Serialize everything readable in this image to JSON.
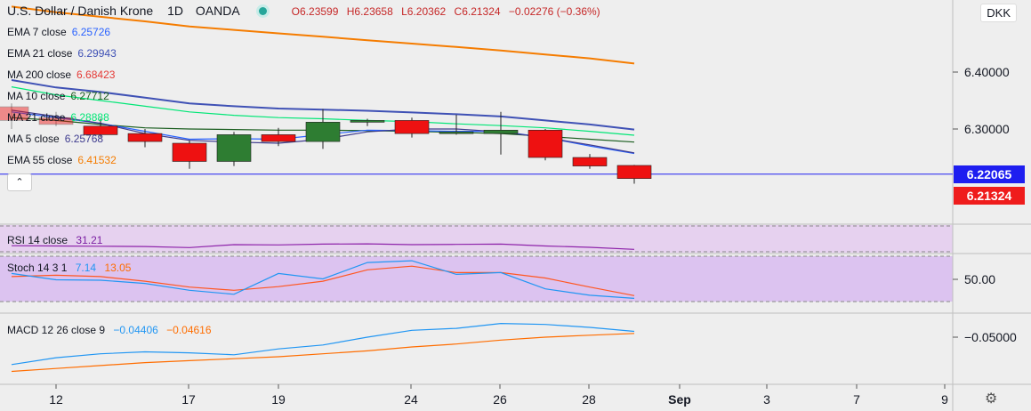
{
  "header": {
    "symbol": "U.S. Dollar / Danish Krone",
    "interval": "1D",
    "source": "OANDA",
    "open": "O6.23599",
    "high": "H6.23658",
    "low": "L6.20362",
    "close": "C6.21324",
    "change": "−0.02276 (−0.36%)"
  },
  "currency_badge": "DKK",
  "indicators": [
    {
      "label": "EMA 7 close",
      "value": "6.25726",
      "color": "#2962ff"
    },
    {
      "label": "EMA 21 close",
      "value": "6.29943",
      "color": "#3f51b5"
    },
    {
      "label": "MA 200 close",
      "value": "6.68423",
      "color": "#e53935"
    },
    {
      "label": "MA 10 close",
      "value": "6.27712",
      "color": "#1b5e20"
    },
    {
      "label": "MA 21 close",
      "value": "6.28888",
      "color": "#00e676"
    },
    {
      "label": "MA 5 close",
      "value": "6.25768",
      "color": "#3f3c8f"
    },
    {
      "label": "EMA 55 close",
      "value": "6.41532",
      "color": "#f57c00"
    }
  ],
  "price_labels": {
    "current_line": "6.22065",
    "last_close": "6.21324"
  },
  "rsi": {
    "label": "RSI 14 close",
    "value": "31.21"
  },
  "stoch": {
    "label": "Stoch 14 3 1",
    "k": "7.14",
    "d": "13.05"
  },
  "macd": {
    "label": "MACD 12 26 close 9",
    "macd": "−0.04406",
    "signal": "−0.04616"
  },
  "chart_data": {
    "type": "candlestick",
    "x_ticks": [
      "12",
      "17",
      "19",
      "24",
      "26",
      "28",
      "Sep",
      "3",
      "7",
      "9"
    ],
    "y_ticks": [
      "6.40000",
      "6.30000"
    ],
    "ylim": [
      6.19,
      6.51
    ],
    "candles": [
      {
        "o": 6.339,
        "h": 6.345,
        "l": 6.3,
        "c": 6.315
      },
      {
        "o": 6.32,
        "h": 6.33,
        "l": 6.305,
        "c": 6.308
      },
      {
        "o": 6.305,
        "h": 6.318,
        "l": 6.285,
        "c": 6.29
      },
      {
        "o": 6.292,
        "h": 6.3,
        "l": 6.268,
        "c": 6.278
      },
      {
        "o": 6.275,
        "h": 6.28,
        "l": 6.23,
        "c": 6.243
      },
      {
        "o": 6.243,
        "h": 6.295,
        "l": 6.235,
        "c": 6.29
      },
      {
        "o": 6.29,
        "h": 6.302,
        "l": 6.27,
        "c": 6.278
      },
      {
        "o": 6.278,
        "h": 6.335,
        "l": 6.265,
        "c": 6.312
      },
      {
        "o": 6.312,
        "h": 6.318,
        "l": 6.305,
        "c": 6.315
      },
      {
        "o": 6.315,
        "h": 6.32,
        "l": 6.285,
        "c": 6.292
      },
      {
        "o": 6.292,
        "h": 6.325,
        "l": 6.29,
        "c": 6.295
      },
      {
        "o": 6.292,
        "h": 6.33,
        "l": 6.255,
        "c": 6.298
      },
      {
        "o": 6.298,
        "h": 6.3,
        "l": 6.245,
        "c": 6.25
      },
      {
        "o": 6.25,
        "h": 6.256,
        "l": 6.23,
        "c": 6.235
      },
      {
        "o": 6.236,
        "h": 6.237,
        "l": 6.204,
        "c": 6.213
      }
    ],
    "series": [
      {
        "name": "EMA 55",
        "color": "#f57c00",
        "values": [
          6.515,
          6.505,
          6.497,
          6.489,
          6.48,
          6.474,
          6.468,
          6.462,
          6.456,
          6.45,
          6.444,
          6.438,
          6.431,
          6.424,
          6.415
        ]
      },
      {
        "name": "EMA 21",
        "color": "#3f51b5",
        "values": [
          6.386,
          6.373,
          6.365,
          6.355,
          6.345,
          6.34,
          6.336,
          6.334,
          6.332,
          6.329,
          6.326,
          6.322,
          6.315,
          6.308,
          6.299
        ]
      },
      {
        "name": "MA 21",
        "color": "#00e676",
        "values": [
          6.374,
          6.36,
          6.35,
          6.34,
          6.33,
          6.324,
          6.32,
          6.318,
          6.315,
          6.313,
          6.309,
          6.306,
          6.302,
          6.296,
          6.289
        ]
      },
      {
        "name": "MA 10",
        "color": "#1b5e20",
        "values": [
          6.32,
          6.315,
          6.308,
          6.302,
          6.3,
          6.299,
          6.298,
          6.298,
          6.297,
          6.296,
          6.294,
          6.292,
          6.287,
          6.282,
          6.277
        ]
      },
      {
        "name": "EMA 7",
        "color": "#2962ff",
        "values": [
          6.33,
          6.32,
          6.31,
          6.296,
          6.282,
          6.283,
          6.282,
          6.29,
          6.298,
          6.297,
          6.296,
          6.296,
          6.285,
          6.27,
          6.257
        ]
      },
      {
        "name": "MA 5",
        "color": "#3f3c8f",
        "values": [
          6.333,
          6.322,
          6.31,
          6.292,
          6.28,
          6.277,
          6.275,
          6.282,
          6.295,
          6.3,
          6.3,
          6.295,
          6.285,
          6.272,
          6.258
        ]
      }
    ],
    "rsi_values": [
      38,
      37.5,
      37,
      36.5,
      34.5,
      40,
      39.5,
      41,
      41.5,
      40,
      40.5,
      41,
      37.5,
      35,
      31.21
    ],
    "stoch_k": [
      62,
      48,
      47,
      40,
      25,
      16,
      62,
      50,
      86,
      90,
      60,
      64,
      28,
      14,
      7.14
    ],
    "stoch_d": [
      55,
      58,
      55,
      45,
      32,
      25,
      33,
      45,
      70,
      78,
      64,
      64,
      52,
      32,
      13.05
    ],
    "macd_line": [
      -0.078,
      -0.071,
      -0.067,
      -0.065,
      -0.066,
      -0.068,
      -0.062,
      -0.058,
      -0.05,
      -0.043,
      -0.041,
      -0.036,
      -0.037,
      -0.04,
      -0.04406
    ],
    "macd_signal": [
      -0.085,
      -0.082,
      -0.079,
      -0.076,
      -0.074,
      -0.072,
      -0.07,
      -0.067,
      -0.064,
      -0.06,
      -0.057,
      -0.053,
      -0.05,
      -0.048,
      -0.04616
    ],
    "rsi_ticks": [],
    "stoch_ticks": [
      "50.00"
    ],
    "macd_ticks": [
      "−0.05000"
    ]
  }
}
